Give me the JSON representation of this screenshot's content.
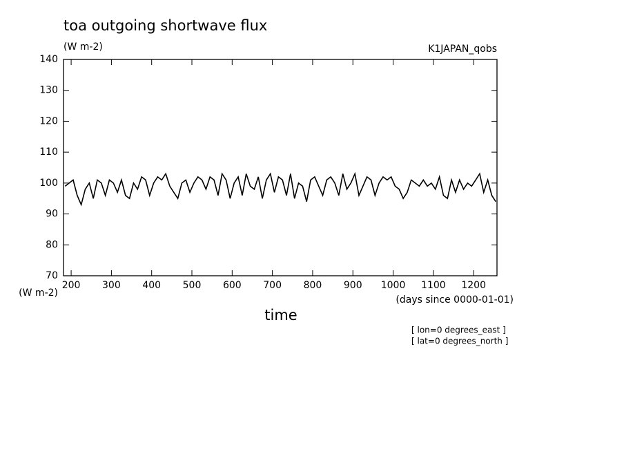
{
  "chart_data": {
    "type": "line",
    "title": "toa outgoing shortwave flux",
    "units": "(W m-2)",
    "dataset": "K1JAPAN_qobs",
    "y_axis_label": "(W m-2)",
    "x_axis_units": "(days since 0000-01-01)",
    "x_axis_label": "time",
    "annotations": [
      "[ lon=0 degrees_east ]",
      "[ lat=0 degrees_north ]"
    ],
    "x": [
      185,
      195,
      205,
      215,
      225,
      235,
      245,
      255,
      265,
      275,
      285,
      295,
      305,
      315,
      325,
      335,
      345,
      355,
      365,
      375,
      385,
      395,
      405,
      415,
      425,
      435,
      445,
      455,
      465,
      475,
      485,
      495,
      505,
      515,
      525,
      535,
      545,
      555,
      565,
      575,
      585,
      595,
      605,
      615,
      625,
      635,
      645,
      655,
      665,
      675,
      685,
      695,
      705,
      715,
      725,
      735,
      745,
      755,
      765,
      775,
      785,
      795,
      805,
      815,
      825,
      835,
      845,
      855,
      865,
      875,
      885,
      895,
      905,
      915,
      925,
      935,
      945,
      955,
      965,
      975,
      985,
      995,
      1005,
      1015,
      1025,
      1035,
      1045,
      1055,
      1065,
      1075,
      1085,
      1095,
      1105,
      1115,
      1125,
      1135,
      1145,
      1155,
      1165,
      1175,
      1185,
      1195,
      1205,
      1215,
      1225,
      1235,
      1245,
      1255
    ],
    "series": [
      {
        "color": "#000000",
        "values": [
          99,
          100,
          101,
          96,
          93,
          98,
          100,
          95,
          101,
          100,
          96,
          101,
          100,
          97,
          101,
          96,
          95,
          100,
          98,
          102,
          101,
          96,
          100,
          102,
          101,
          103,
          99,
          97,
          95,
          100,
          101,
          97,
          100,
          102,
          101,
          98,
          102,
          101,
          96,
          103,
          101,
          95,
          100,
          102,
          96,
          103,
          99,
          98,
          102,
          95,
          101,
          103,
          97,
          102,
          101,
          96,
          103,
          95,
          100,
          99,
          94,
          101,
          102,
          99,
          96,
          101,
          102,
          100,
          96,
          103,
          98,
          100,
          103,
          96,
          99,
          102,
          101,
          96,
          100,
          102,
          101,
          102,
          99,
          98,
          95,
          97,
          101,
          100,
          99,
          101,
          99,
          100,
          98,
          102,
          96,
          95,
          101,
          97,
          101,
          98,
          100,
          99,
          101,
          103,
          97,
          101,
          96,
          94
        ]
      }
    ],
    "xlim": [
      181,
      1258
    ],
    "xticks": [
      200,
      300,
      400,
      500,
      600,
      700,
      800,
      900,
      1000,
      1100,
      1200
    ],
    "ylim": [
      70,
      140
    ],
    "yticks": [
      70,
      80,
      90,
      100,
      110,
      120,
      130,
      140
    ]
  }
}
